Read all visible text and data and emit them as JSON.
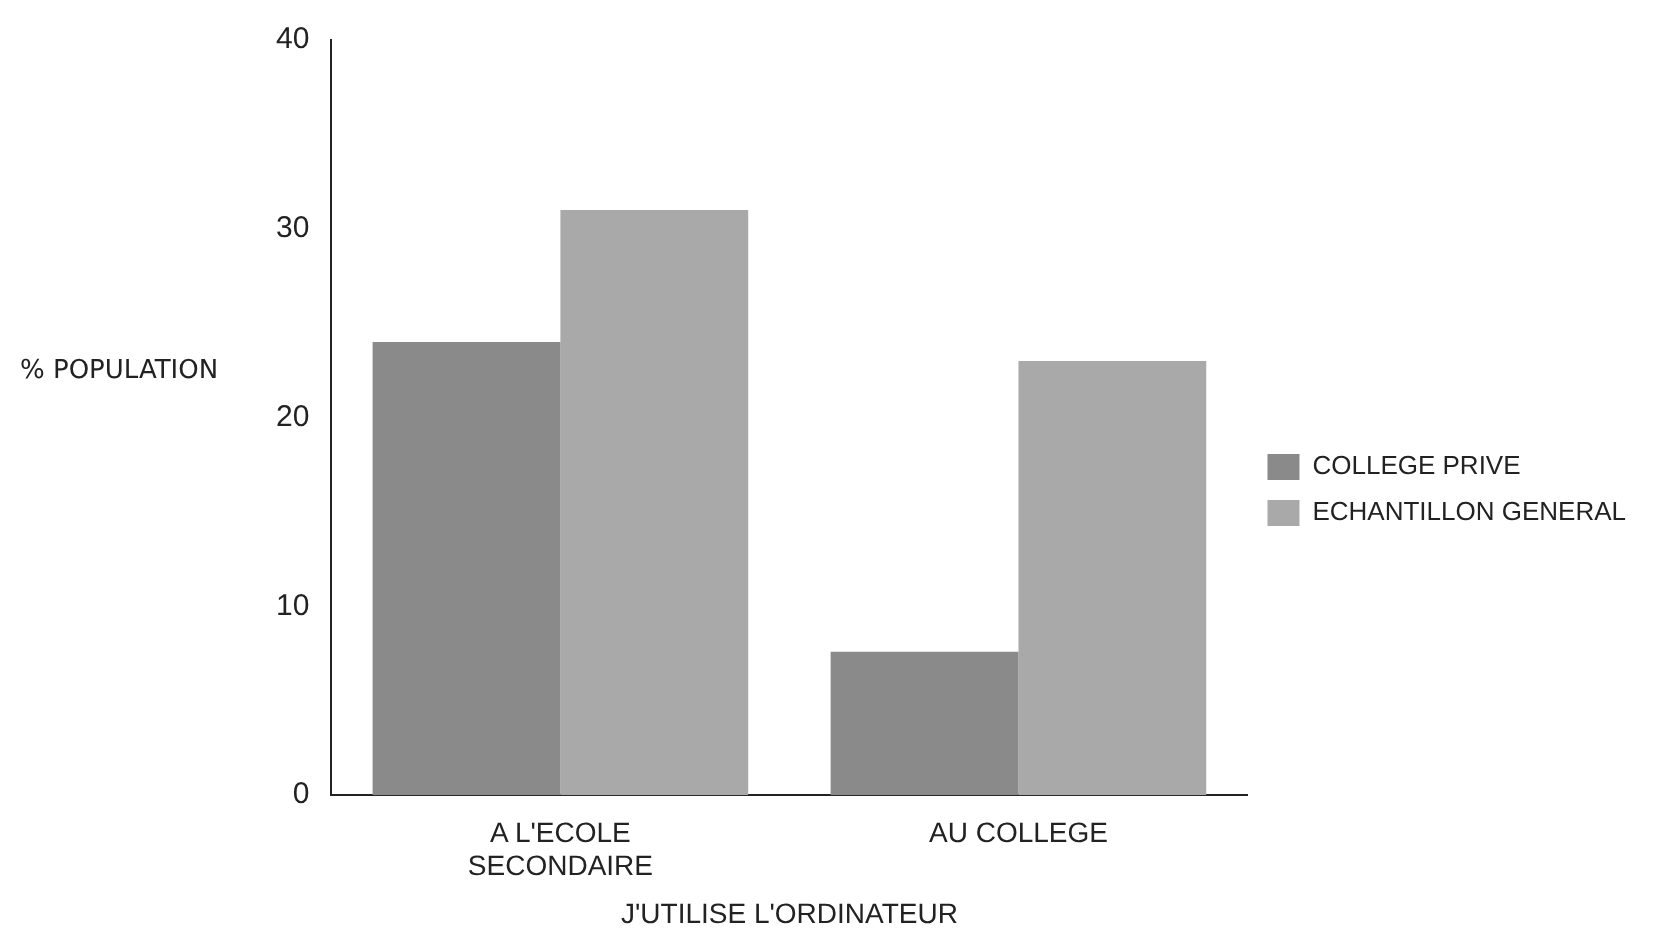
{
  "chart_data": {
    "type": "bar",
    "xlabel": "J'UTILISE L'ORDINATEUR",
    "ylabel": "% POPULATION",
    "categories": [
      [
        "A L'ECOLE",
        "SECONDAIRE"
      ],
      "AU COLLEGE"
    ],
    "series": [
      {
        "name": "COLLEGE PRIVE",
        "color": "#8a8a8a",
        "values": [
          24,
          7.6
        ]
      },
      {
        "name": "ECHANTILLON GENERAL",
        "color": "#a9a9a9",
        "values": [
          31,
          23
        ]
      }
    ],
    "ylim": [
      0,
      40
    ],
    "yticks": [
      0,
      10,
      20,
      30,
      40
    ],
    "grid": false,
    "legend": "right"
  }
}
